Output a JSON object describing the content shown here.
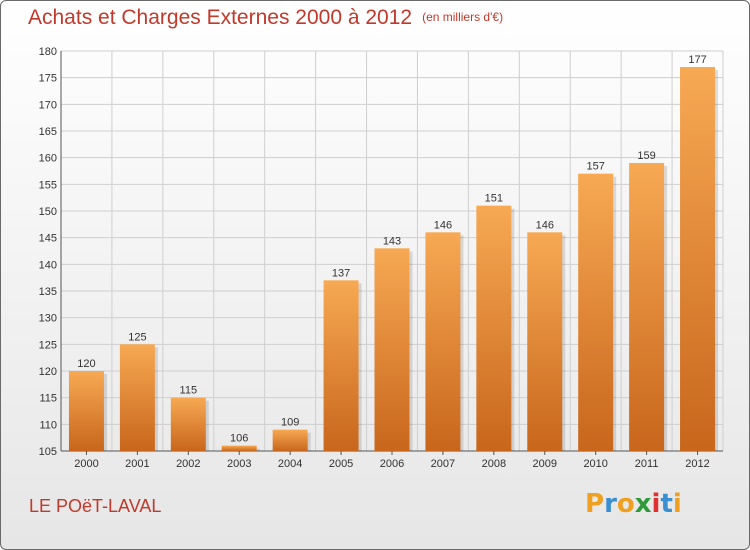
{
  "title": "Achats et Charges Externes 2000 à 2012",
  "unit": "(en milliers d'€)",
  "commune": "LE POëT-LAVAL",
  "logo": {
    "text": "Proxiti",
    "letter_colors": [
      "#f0a020",
      "#3a8fd0",
      "#f0a020",
      "#2e9a3a",
      "#e03030",
      "#3a8fd0",
      "#f0a020"
    ]
  },
  "colors": {
    "title": "#c0392b",
    "bar_top": "#f7a953",
    "bar_bottom": "#c8661c"
  },
  "chart_data": {
    "type": "bar",
    "title": "Achats et Charges Externes 2000 à 2012",
    "categories": [
      "2000",
      "2001",
      "2002",
      "2003",
      "2004",
      "2005",
      "2006",
      "2007",
      "2008",
      "2009",
      "2010",
      "2011",
      "2012"
    ],
    "values": [
      120,
      125,
      115,
      106,
      109,
      137,
      143,
      146,
      151,
      146,
      157,
      159,
      177
    ],
    "ylim": [
      105,
      180
    ],
    "yticks": [
      105,
      110,
      115,
      120,
      125,
      130,
      135,
      140,
      145,
      150,
      155,
      160,
      165,
      170,
      175,
      180
    ],
    "grid": true,
    "xlabel": "",
    "ylabel": ""
  }
}
